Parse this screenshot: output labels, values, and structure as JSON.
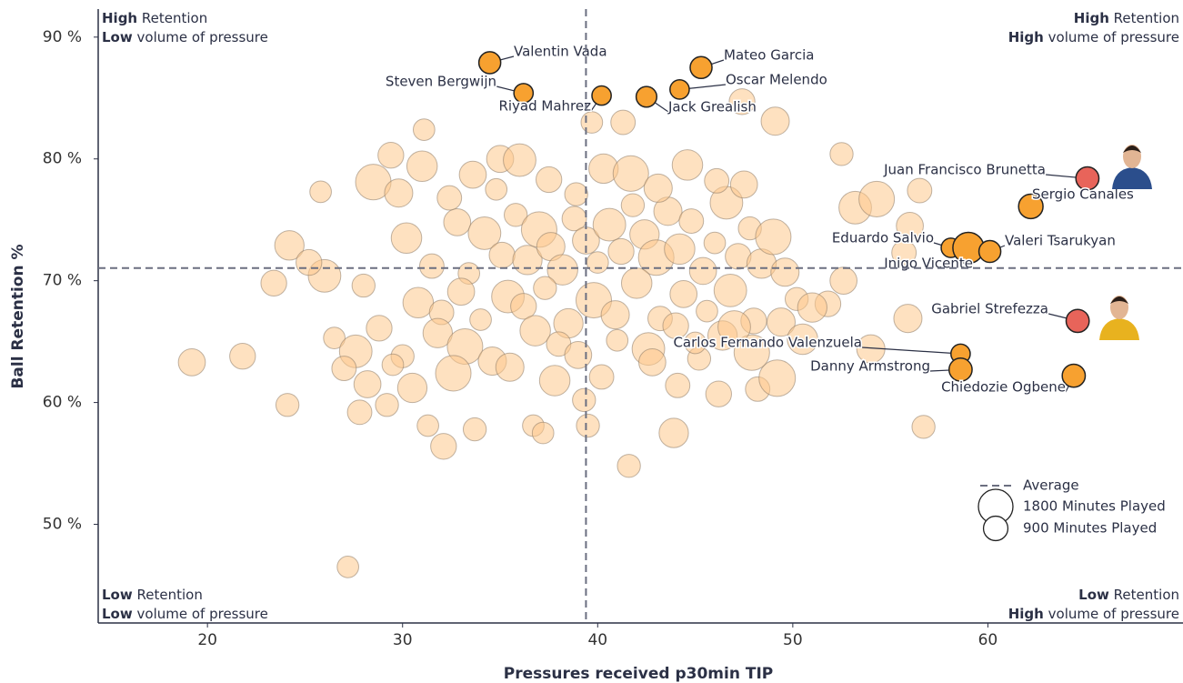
{
  "chart_data": {
    "type": "scatter",
    "x_label": "Pressures received p30min TIP",
    "y_label": "Ball Retention %",
    "xlim": [
      14.4,
      70
    ],
    "ylim": [
      41.9,
      92.3
    ],
    "xticks": [
      20,
      30,
      40,
      50,
      60
    ],
    "yticks": [
      {
        "value": 50,
        "label": "50 %"
      },
      {
        "value": 60,
        "label": "60 %"
      },
      {
        "value": 70,
        "label": "70 %"
      },
      {
        "value": 80,
        "label": "80 %"
      },
      {
        "value": 90,
        "label": "90 %"
      }
    ],
    "average": {
      "label": "Average",
      "x": 39.4,
      "y": 71.04
    },
    "size_legend": [
      {
        "value": 1800,
        "label": "1800 Minutes Played"
      },
      {
        "value": 900,
        "label": "900 Minutes Played"
      }
    ],
    "quadrants": [
      {
        "corner": "top-left",
        "lines": [
          {
            "bold": "High",
            "text": "Retention"
          },
          {
            "bold": "Low",
            "text": "volume of pressure"
          }
        ]
      },
      {
        "corner": "top-right",
        "lines": [
          {
            "bold": "High",
            "text": "Retention"
          },
          {
            "bold": "High",
            "text": "volume of pressure"
          }
        ]
      },
      {
        "corner": "bottom-left",
        "lines": [
          {
            "bold": "Low",
            "text": "Retention"
          },
          {
            "bold": "Low",
            "text": "volume of pressure"
          }
        ]
      },
      {
        "corner": "bottom-right",
        "lines": [
          {
            "bold": "Low",
            "text": "Retention"
          },
          {
            "bold": "High",
            "text": "volume of pressure"
          }
        ]
      }
    ],
    "points": {
      "color": "#fdc98c",
      "x": [
        19.2,
        21.8,
        27.2,
        24.1,
        23.4,
        25.8,
        24.2,
        31.1,
        29.4,
        35,
        39.7,
        41.3,
        47.4,
        49.1,
        52.5,
        56.5,
        56,
        55.9,
        56.7,
        41.6,
        43.9,
        39.5,
        33.7,
        32.1,
        36.7,
        37.2,
        27.8,
        29.2,
        31.3,
        39.3,
        44.1,
        46.2,
        48.2,
        49.2,
        54,
        52.6,
        51.8,
        53.2,
        54.3,
        55.7,
        30.2,
        31.5,
        32.8,
        33.4,
        34.2,
        35.1,
        35.8,
        36.4,
        37,
        37.6,
        38.2,
        38.8,
        39.4,
        40,
        40.6,
        41.2,
        41.8,
        42.4,
        43,
        43.6,
        44.2,
        44.8,
        45.4,
        46,
        46.6,
        47.2,
        47.8,
        48.4,
        49,
        49.6,
        30.8,
        32,
        33,
        34,
        35.4,
        36.2,
        37.3,
        38.5,
        39.8,
        40.9,
        42,
        43.2,
        44.4,
        45.6,
        46.8,
        48,
        50.2,
        51,
        28.5,
        29.8,
        31,
        32.4,
        33.6,
        34.8,
        36,
        37.5,
        38.9,
        40.3,
        41.7,
        43.1,
        44.6,
        46.1,
        47.5,
        26.5,
        27.6,
        28.8,
        30,
        31.8,
        33.2,
        34.6,
        36.8,
        38,
        39,
        41,
        42.6,
        44,
        45.2,
        46.4,
        47.9,
        49.4,
        50.5,
        27,
        28.2,
        29.5,
        26,
        25.2,
        28,
        30.5,
        32.6,
        35.5,
        37.8,
        40.2,
        42.8,
        45,
        47
      ],
      "y": [
        63.3,
        63.8,
        46.5,
        59.8,
        69.8,
        77.3,
        72.9,
        82.4,
        80.3,
        80,
        83,
        83,
        84.7,
        83.1,
        80.4,
        77.4,
        74.5,
        66.9,
        58,
        54.8,
        57.5,
        58.1,
        57.8,
        56.4,
        58.1,
        57.5,
        59.2,
        59.8,
        58.1,
        60.2,
        61.4,
        60.7,
        61.1,
        62,
        64.4,
        70,
        68.1,
        76,
        76.7,
        72.3,
        73.5,
        71.2,
        74.8,
        70.6,
        73.9,
        72.1,
        75.4,
        71.7,
        74.2,
        72.8,
        70.9,
        75.1,
        73.3,
        71.5,
        74.6,
        72.4,
        76.2,
        73.8,
        71.9,
        75.7,
        72.6,
        74.9,
        70.8,
        73.1,
        76.4,
        72,
        74.3,
        71.4,
        73.6,
        70.7,
        68.2,
        67.4,
        69.1,
        66.8,
        68.7,
        67.9,
        69.4,
        66.5,
        68.4,
        67.2,
        69.8,
        66.9,
        68.9,
        67.5,
        69.2,
        66.7,
        68.5,
        67.8,
        78.1,
        77.2,
        79.4,
        76.8,
        78.7,
        77.5,
        79.9,
        78.3,
        77.1,
        79.2,
        78.8,
        77.6,
        79.5,
        78.2,
        77.9,
        65.3,
        64.2,
        66.1,
        63.8,
        65.7,
        64.6,
        63.4,
        65.9,
        64.8,
        63.9,
        65.1,
        64.4,
        66.3,
        63.6,
        65.5,
        64.1,
        66.6,
        65.2,
        62.8,
        61.5,
        63.1,
        70.4,
        71.5,
        69.6,
        61.2,
        62.4,
        62.9,
        61.8,
        62.1,
        63.3,
        64.9,
        66.2
      ],
      "minutes": [
        1100,
        1000,
        700,
        800,
        1000,
        700,
        1300,
        700,
        1000,
        1100,
        700,
        900,
        1000,
        1200,
        800,
        900,
        1100,
        1200,
        800,
        800,
        1300,
        800,
        800,
        1000,
        700,
        700,
        900,
        800,
        700,
        800,
        900,
        1000,
        900,
        2000,
        1200,
        1100,
        1000,
        1600,
        1900,
        900,
        1400,
        900,
        1100,
        700,
        1600,
        1000,
        800,
        1300,
        1900,
        1200,
        1400,
        900,
        1100,
        700,
        1600,
        1000,
        800,
        1300,
        1900,
        1200,
        1400,
        900,
        1100,
        700,
        1600,
        1000,
        800,
        1300,
        1900,
        1200,
        1400,
        900,
        1100,
        700,
        1600,
        1000,
        800,
        1300,
        1900,
        1200,
        1400,
        900,
        1100,
        700,
        1600,
        1000,
        800,
        1300,
        1900,
        1200,
        1400,
        900,
        1100,
        700,
        1600,
        1000,
        800,
        1300,
        1900,
        1200,
        1400,
        900,
        1100,
        700,
        1600,
        1000,
        800,
        1300,
        1900,
        1200,
        1400,
        900,
        1100,
        700,
        1600,
        1000,
        800,
        1300,
        1900,
        1200,
        1400,
        900,
        1100,
        700,
        1600,
        1000,
        800,
        1300,
        1900,
        1200,
        1400,
        900,
        1100,
        700,
        1600
      ]
    },
    "highlighted": [
      {
        "name": "Valentin Vada",
        "x": 34.47,
        "y": 87.9,
        "minutes": 720,
        "color": "#f7a130"
      },
      {
        "name": "Steven Bergwijn",
        "x": 36.2,
        "y": 85.4,
        "minutes": 560,
        "color": "#f7a130"
      },
      {
        "name": "Riyad Mahrez",
        "x": 40.2,
        "y": 85.2,
        "minutes": 560,
        "color": "#f7a130"
      },
      {
        "name": "Mateo Garcia",
        "x": 45.3,
        "y": 87.5,
        "minutes": 720,
        "color": "#f7a130"
      },
      {
        "name": "Oscar Melendo",
        "x": 44.2,
        "y": 85.7,
        "minutes": 560,
        "color": "#f7a130"
      },
      {
        "name": "Jack Grealish",
        "x": 42.5,
        "y": 85.1,
        "minutes": 640,
        "color": "#f7a130"
      },
      {
        "name": "Juan Francisco Brunetta",
        "x": 65.1,
        "y": 78.4,
        "minutes": 800,
        "color": "#e8645a"
      },
      {
        "name": "Sergio Canales",
        "x": 62.2,
        "y": 76.1,
        "minutes": 900,
        "color": "#f7a130"
      },
      {
        "name": "Eduardo Salvio",
        "x": 58.1,
        "y": 72.7,
        "minutes": 560,
        "color": "#f7a130"
      },
      {
        "name": "Inigo Vicente",
        "x": 59.0,
        "y": 72.7,
        "minutes": 1450,
        "color": "#f7a130"
      },
      {
        "name": "Valeri Tsarukyan",
        "x": 60.1,
        "y": 72.4,
        "minutes": 720,
        "color": "#f7a130"
      },
      {
        "name": "Gabriel Strefezza",
        "x": 64.6,
        "y": 66.7,
        "minutes": 800,
        "color": "#e8645a"
      },
      {
        "name": "Carlos Fernando Valenzuela",
        "x": 58.6,
        "y": 64.0,
        "minutes": 560,
        "color": "#f7a130"
      },
      {
        "name": "Danny Armstrong",
        "x": 58.6,
        "y": 62.7,
        "minutes": 800,
        "color": "#f7a130"
      },
      {
        "name": "Chiedozie Ogbene",
        "x": 64.4,
        "y": 62.2,
        "minutes": 800,
        "color": "#f7a130"
      }
    ]
  }
}
